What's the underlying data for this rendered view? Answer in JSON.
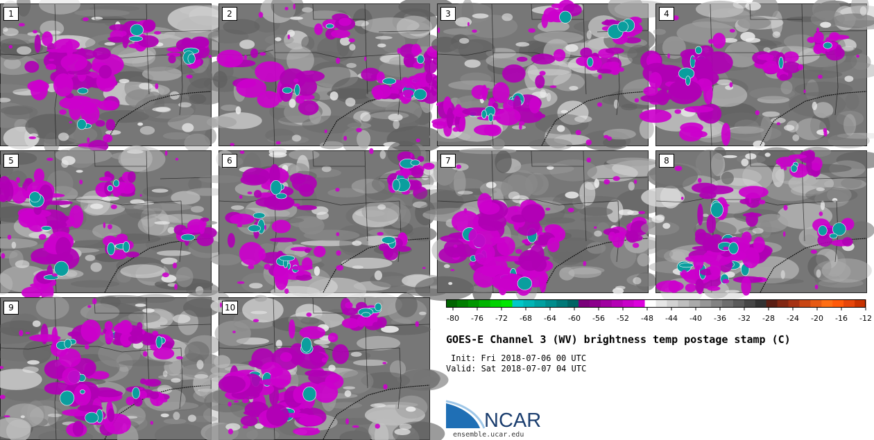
{
  "figure": {
    "title": "GOES-E Channel 3 (WV) brightness temp postage stamp (C)",
    "init_line": "Init: Fri 2018-07-06 00 UTC",
    "valid_line": "Valid: Sat 2018-07-07 04 UTC",
    "website": "ensemble.ucar.edu",
    "logo_text": "NCAR"
  },
  "members": [
    "1",
    "2",
    "3",
    "4",
    "5",
    "6",
    "7",
    "8",
    "9",
    "10"
  ],
  "colorbar": {
    "tick_labels": [
      "-80",
      "-76",
      "-72",
      "-68",
      "-64",
      "-60",
      "-56",
      "-52",
      "-48",
      "-44",
      "-40",
      "-36",
      "-32",
      "-28",
      "-24",
      "-20",
      "-16",
      "-12"
    ],
    "colors": [
      "#006400",
      "#007d00",
      "#009600",
      "#00b400",
      "#00d200",
      "#00e600",
      "#00c8c8",
      "#00b4b4",
      "#00a0a0",
      "#008c8c",
      "#007878",
      "#006464",
      "#7a007a",
      "#8c008c",
      "#a000a0",
      "#b400b4",
      "#c800c8",
      "#dc00dc",
      "#ffffff",
      "#e6e6e6",
      "#d2d2d2",
      "#bebebe",
      "#aaaaaa",
      "#969696",
      "#828282",
      "#6e6e6e",
      "#5a5a5a",
      "#464646",
      "#323232",
      "#5a1e14",
      "#822814",
      "#a53214",
      "#c84614",
      "#e65a14",
      "#ff6e14",
      "#ff5a0a",
      "#e6460a",
      "#c83200"
    ]
  }
}
